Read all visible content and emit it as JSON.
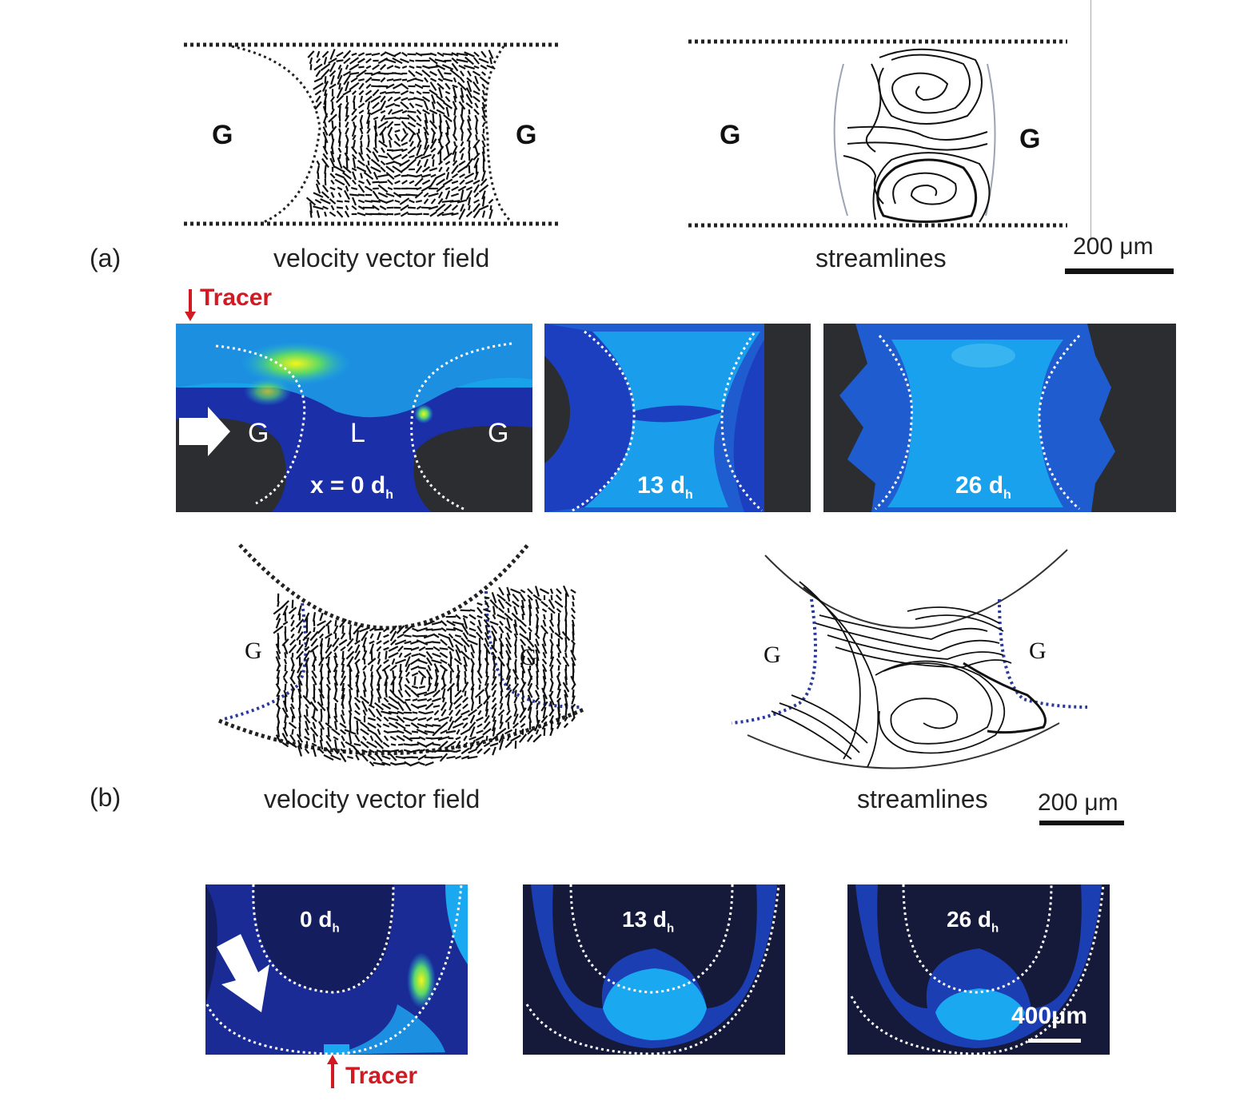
{
  "figure": {
    "a": {
      "letter": "(a)",
      "vector_caption": "velocity vector field",
      "stream_caption": "streamlines",
      "g_label": "G",
      "scale_text": "200 μm",
      "tracer_label": "Tracer",
      "panels": [
        {
          "position": "x = 0 d",
          "sub": "h",
          "gas_label": "G",
          "liquid_label": "L"
        },
        {
          "position": "13 d",
          "sub": "h"
        },
        {
          "position": "26 d",
          "sub": "h"
        }
      ]
    },
    "b": {
      "letter": "(b)",
      "vector_caption": "velocity vector field",
      "stream_caption": "streamlines",
      "g_label": "G",
      "scale_text": "200 μm",
      "tracer_label": "Tracer",
      "scale_text_bottom": "400μm",
      "panels": [
        {
          "position": "0 d",
          "sub": "h"
        },
        {
          "position": "13 d",
          "sub": "h"
        },
        {
          "position": "26 d",
          "sub": "h"
        }
      ]
    }
  },
  "colors": {
    "tracer_red": "#d11a22",
    "channel_blue": "#1a2fa8",
    "bright_blue": "#1aa8f0",
    "gas_dark": "#2b2d31",
    "interface_blue_dotted": "#2a3a9c"
  }
}
